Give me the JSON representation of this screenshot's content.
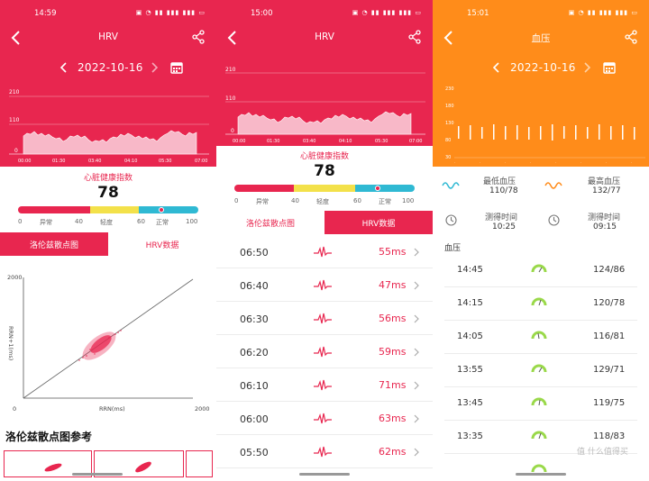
{
  "colors": {
    "red": "#e8264f",
    "orange": "#ff8c1a",
    "yellow": "#f3e14a",
    "cyan": "#2fb9d3",
    "gauge_green": "#9ad94a"
  },
  "screens": [
    {
      "status_time": "14:59",
      "title": "HRV",
      "date": "2022-10-16",
      "chart": {
        "y_ticks": [
          "210",
          "110",
          "0"
        ],
        "x_ticks": [
          "00:00",
          "01:30",
          "03:40",
          "04:10",
          "05:30",
          "07:00"
        ]
      },
      "health_index": {
        "title": "心脏健康指数",
        "value": "78",
        "ticks": [
          "0",
          "异常",
          "40",
          "轻度",
          "60",
          "正常",
          "100"
        ]
      },
      "tabs": [
        "洛伦兹散点图",
        "HRV数据"
      ],
      "scatter": {
        "y_max": "2000",
        "x_max": "2000",
        "origin": "0",
        "x_label": "RRN(ms)",
        "y_label": "RRN+1(ms)"
      },
      "reference_title": "洛伦兹散点图参考"
    },
    {
      "status_time": "15:00",
      "title": "HRV",
      "chart": {
        "y_ticks": [
          "210",
          "110",
          "0"
        ],
        "x_ticks": [
          "00:00",
          "01:30",
          "03:40",
          "04:10",
          "05:30",
          "07:00"
        ]
      },
      "health_index": {
        "title": "心脏健康指数",
        "value": "78",
        "ticks": [
          "0",
          "异常",
          "40",
          "轻度",
          "60",
          "正常",
          "100"
        ]
      },
      "tabs": [
        "洛伦兹散点图",
        "HRV数据"
      ],
      "rows": [
        {
          "time": "06:50",
          "value": "55ms"
        },
        {
          "time": "06:40",
          "value": "47ms"
        },
        {
          "time": "06:30",
          "value": "56ms"
        },
        {
          "time": "06:20",
          "value": "59ms"
        },
        {
          "time": "06:10",
          "value": "71ms"
        },
        {
          "time": "06:00",
          "value": "63ms"
        },
        {
          "time": "05:50",
          "value": "62ms"
        }
      ]
    },
    {
      "status_time": "15:01",
      "title": "血压",
      "date": "2022-10-16",
      "chart": {
        "y_ticks": [
          "230",
          "180",
          "130",
          "80",
          "30"
        ]
      },
      "summary": {
        "min_label": "最低血压",
        "min_value": "110/78",
        "max_label": "最高血压",
        "max_value": "132/77",
        "time_label_1": "测得时间",
        "time_value_1": "10:25",
        "time_label_2": "测得时间",
        "time_value_2": "09:15"
      },
      "list_title": "血压",
      "rows": [
        {
          "time": "14:45",
          "value": "124/86"
        },
        {
          "time": "14:15",
          "value": "120/78"
        },
        {
          "time": "14:05",
          "value": "116/81"
        },
        {
          "time": "13:55",
          "value": "129/71"
        },
        {
          "time": "13:45",
          "value": "119/75"
        },
        {
          "time": "13:35",
          "value": "118/83"
        }
      ],
      "watermark": "值 什么值得买"
    }
  ]
}
